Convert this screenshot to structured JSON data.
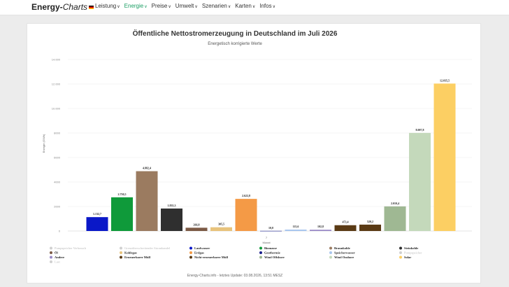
{
  "header": {
    "logo_bold": "Energy-",
    "logo_italic": "Charts",
    "nav": [
      {
        "label": "Leistung",
        "active": false
      },
      {
        "label": "Energie",
        "active": true
      },
      {
        "label": "Preise",
        "active": false
      },
      {
        "label": "Umwelt",
        "active": false
      },
      {
        "label": "Szenarien",
        "active": false
      },
      {
        "label": "Karten",
        "active": false
      },
      {
        "label": "Infos",
        "active": false
      }
    ]
  },
  "footer": "Energy-Charts.info - letztes Update: 03.08.2026, 13:51 MESZ",
  "chart_data": {
    "type": "bar",
    "title": "Öffentliche Nettostromerzeugung in Deutschland im Juli 2026",
    "subtitle": "Energetisch korrigierte Werte",
    "ylabel": "Energie (GWh)",
    "xlabel": "Monat",
    "category": "7",
    "ylim": [
      0,
      14000
    ],
    "yticks": [
      0,
      2000,
      4000,
      6000,
      8000,
      10000,
      12000,
      14000
    ],
    "ytick_labels": [
      "0",
      "2000",
      "4000",
      "6000",
      "8000",
      "10.000",
      "12.000",
      "14.000"
    ],
    "grid": true,
    "series": [
      {
        "name": "Laufwasser",
        "value": 1132.7,
        "label": "1.132,7",
        "color": "#0a18c8"
      },
      {
        "name": "Biomasse",
        "value": 2750.5,
        "label": "2.750,5",
        "color": "#0f9a3a"
      },
      {
        "name": "Braunkohle",
        "value": 4882.4,
        "label": "4.882,4",
        "color": "#9b7b60"
      },
      {
        "name": "Steinkohle",
        "value": 1835.3,
        "label": "1.835,3",
        "color": "#2f2f2f"
      },
      {
        "name": "Öl",
        "value": 266.8,
        "label": "266,8",
        "color": "#7c5a45"
      },
      {
        "name": "Kohlegas",
        "value": 305.5,
        "label": "305,5",
        "color": "#e8c37c"
      },
      {
        "name": "Erdgas",
        "value": 2622.8,
        "label": "2.622,8",
        "color": "#f49a46"
      },
      {
        "name": "Geothermie",
        "value": 10.8,
        "label": "10,8",
        "color": "#1a1f8c"
      },
      {
        "name": "Speicherwasser",
        "value": 115.6,
        "label": "115,6",
        "color": "#a9c6ee"
      },
      {
        "name": "Andere",
        "value": 102.8,
        "label": "102,8",
        "color": "#9a8ac6"
      },
      {
        "name": "Erneuerbarer Müll",
        "value": 473.4,
        "label": "473,4",
        "color": "#5a3a14"
      },
      {
        "name": "Nicht-erneuerbarer Müll",
        "value": 520.2,
        "label": "520,2",
        "color": "#5a3a14"
      },
      {
        "name": "Wind Offshore",
        "value": 2010.4,
        "label": "2.010,4",
        "color": "#9fb893"
      },
      {
        "name": "Wind Onshore",
        "value": 8007.8,
        "label": "8.007,8",
        "color": "#c4d9bb"
      },
      {
        "name": "Solar",
        "value": 12035.5,
        "label": "12.035,5",
        "color": "#fccf63"
      }
    ],
    "legend": {
      "placement": "bottom",
      "items": [
        {
          "name": "Pumpspeicher Verbrauch",
          "color": "#d0d0d0",
          "active": false
        },
        {
          "name": "Grenzüberschreitender Stromhandel",
          "color": "#d0d0d0",
          "active": false
        },
        {
          "name": "Laufwasser",
          "color": "#0a18c8",
          "active": true
        },
        {
          "name": "Biomasse",
          "color": "#0f9a3a",
          "active": true
        },
        {
          "name": "Braunkohle",
          "color": "#9b7b60",
          "active": true
        },
        {
          "name": "Steinkohle",
          "color": "#2f2f2f",
          "active": true
        },
        {
          "name": "Öl",
          "color": "#7c5a45",
          "active": true
        },
        {
          "name": "Kohlegas",
          "color": "#e8c37c",
          "active": true
        },
        {
          "name": "Erdgas",
          "color": "#f49a46",
          "active": true
        },
        {
          "name": "Geothermie",
          "color": "#1a1f8c",
          "active": true
        },
        {
          "name": "Speicherwasser",
          "color": "#a9c6ee",
          "active": true
        },
        {
          "name": "Pumpspeicher",
          "color": "#d0d0d0",
          "active": false
        },
        {
          "name": "Andere",
          "color": "#9a8ac6",
          "active": true
        },
        {
          "name": "Erneuerbarer Müll",
          "color": "#5a3a14",
          "active": true
        },
        {
          "name": "Nicht-erneuerbarer Müll",
          "color": "#5a3a14",
          "active": true
        },
        {
          "name": "Wind Offshore",
          "color": "#9fb893",
          "active": true
        },
        {
          "name": "Wind Onshore",
          "color": "#c4d9bb",
          "active": true
        },
        {
          "name": "Solar",
          "color": "#fccf63",
          "active": true
        },
        {
          "name": "Last",
          "color": "#d0d0d0",
          "active": false
        }
      ]
    }
  }
}
